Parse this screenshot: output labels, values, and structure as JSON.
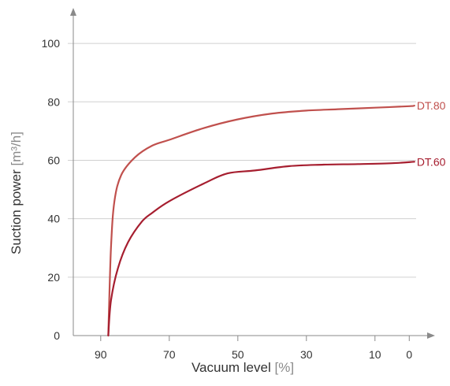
{
  "chart_data": {
    "type": "line",
    "title": "",
    "xlabel": "Vacuum level",
    "xlabel_unit": "[%]",
    "ylabel": "Suction power",
    "ylabel_unit": "[m³/h]",
    "x_reversed": true,
    "xlim": [
      98,
      -2
    ],
    "ylim": [
      0,
      110
    ],
    "xticks": [
      "90",
      "70",
      "50",
      "30",
      "10",
      "0"
    ],
    "yticks": [
      "0",
      "20",
      "40",
      "60",
      "80",
      "100"
    ],
    "grid": "horizontal",
    "series": [
      {
        "name": "DT.80",
        "color": "#c0504d",
        "x": [
          87.8,
          87.0,
          86.0,
          84.0,
          80.0,
          75.0,
          70.0,
          60.0,
          50.0,
          40.0,
          30.0,
          20.0,
          10.0,
          0.0,
          -1.5
        ],
        "y": [
          0,
          30,
          46,
          55,
          61,
          65,
          67,
          71,
          74,
          76,
          77,
          77.5,
          78,
          78.5,
          78.7
        ]
      },
      {
        "name": "DT.60",
        "color": "#a61e2f",
        "x": [
          87.8,
          87.0,
          85.0,
          82.0,
          78.0,
          75.0,
          70.0,
          60.0,
          53.0,
          45.0,
          35.0,
          25.0,
          15.0,
          5.0,
          -1.5
        ],
        "y": [
          0,
          12,
          23,
          32,
          39,
          42,
          46,
          52,
          55.5,
          56.5,
          58,
          58.5,
          58.7,
          59,
          59.5
        ]
      }
    ]
  }
}
